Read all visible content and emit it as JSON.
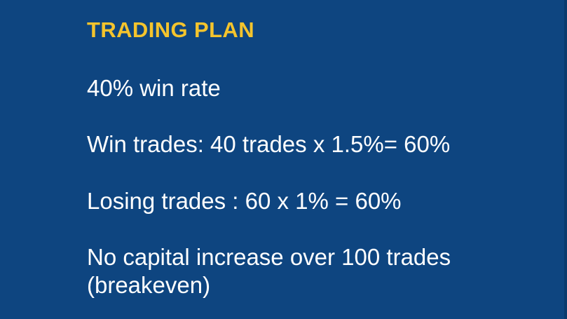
{
  "slide": {
    "title": "TRADING PLAN",
    "lines": [
      "40% win rate",
      "Win trades: 40 trades x 1.5%= 60%",
      "Losing trades : 60 x 1% = 60%",
      "No capital increase over 100 trades",
      "(breakeven)"
    ]
  },
  "colors": {
    "background": "#0e4580",
    "title": "#f4c42d",
    "text": "#ffffff"
  }
}
